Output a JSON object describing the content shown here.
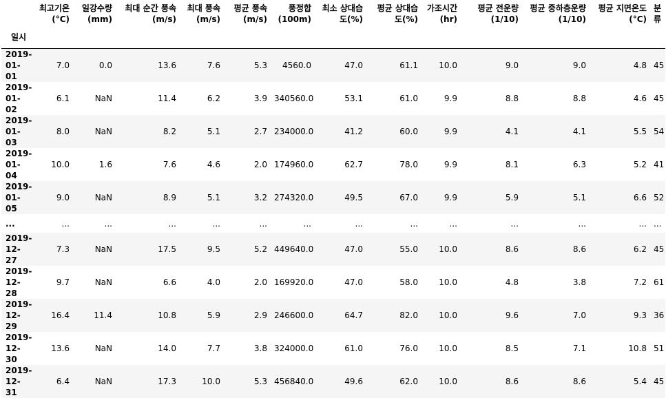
{
  "index_name": "일시",
  "columns": [
    "최고기온(°C)",
    "일강수량(mm)",
    "최대 순간 풍속(m/s)",
    "최대 풍속(m/s)",
    "평균 풍속(m/s)",
    "풍정합(100m)",
    "최소 상대습도(%)",
    "평균 상대습도(%)",
    "가조시간(hr)",
    "평균 전운량(1/10)",
    "평균 중하층운량(1/10)",
    "평균 지면온도(°C)",
    "분류"
  ],
  "rows": [
    {
      "index": "2019-01-01",
      "values": [
        "7.0",
        "0.0",
        "13.6",
        "7.6",
        "5.3",
        "4560.0",
        "47.0",
        "61.1",
        "10.0",
        "9.0",
        "9.0",
        "4.8",
        "45"
      ]
    },
    {
      "index": "2019-01-02",
      "values": [
        "6.1",
        "NaN",
        "11.4",
        "6.2",
        "3.9",
        "340560.0",
        "53.1",
        "61.0",
        "9.9",
        "8.8",
        "8.8",
        "4.6",
        "45"
      ]
    },
    {
      "index": "2019-01-03",
      "values": [
        "8.0",
        "NaN",
        "8.2",
        "5.1",
        "2.7",
        "234000.0",
        "41.2",
        "60.0",
        "9.9",
        "4.1",
        "4.1",
        "5.5",
        "54"
      ]
    },
    {
      "index": "2019-01-04",
      "values": [
        "10.0",
        "1.6",
        "7.6",
        "4.6",
        "2.0",
        "174960.0",
        "62.7",
        "78.0",
        "9.9",
        "8.1",
        "6.3",
        "5.2",
        "41"
      ]
    },
    {
      "index": "2019-01-05",
      "values": [
        "9.0",
        "NaN",
        "8.9",
        "5.1",
        "3.2",
        "274320.0",
        "49.5",
        "67.0",
        "9.9",
        "5.9",
        "5.1",
        "6.6",
        "52"
      ]
    },
    {
      "index": "...",
      "values": [
        "...",
        "...",
        "...",
        "...",
        "...",
        "...",
        "...",
        "...",
        "...",
        "...",
        "...",
        "...",
        "..."
      ]
    },
    {
      "index": "2019-12-27",
      "values": [
        "7.3",
        "NaN",
        "17.5",
        "9.5",
        "5.2",
        "449640.0",
        "47.0",
        "55.0",
        "10.0",
        "8.6",
        "8.6",
        "6.2",
        "45"
      ]
    },
    {
      "index": "2019-12-28",
      "values": [
        "9.7",
        "NaN",
        "6.6",
        "4.0",
        "2.0",
        "169920.0",
        "47.0",
        "58.0",
        "10.0",
        "4.8",
        "3.8",
        "7.2",
        "61"
      ]
    },
    {
      "index": "2019-12-29",
      "values": [
        "16.4",
        "11.4",
        "10.8",
        "5.9",
        "2.9",
        "246600.0",
        "64.7",
        "82.0",
        "10.0",
        "9.6",
        "7.0",
        "9.3",
        "36"
      ]
    },
    {
      "index": "2019-12-30",
      "values": [
        "13.6",
        "NaN",
        "14.0",
        "7.7",
        "3.8",
        "324000.0",
        "61.0",
        "76.0",
        "10.0",
        "8.5",
        "7.1",
        "10.8",
        "51"
      ]
    },
    {
      "index": "2019-12-31",
      "values": [
        "6.4",
        "NaN",
        "17.3",
        "10.0",
        "5.3",
        "456840.0",
        "49.6",
        "62.0",
        "10.0",
        "8.6",
        "8.6",
        "5.4",
        "45"
      ]
    }
  ]
}
